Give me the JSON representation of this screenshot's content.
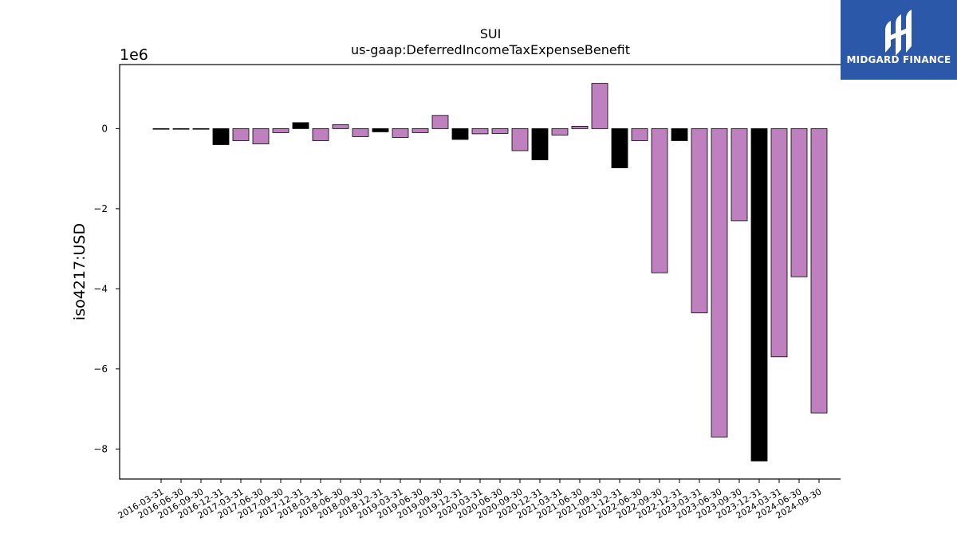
{
  "logo": {
    "text": "MIDGARD FINANCE",
    "icon": "midgard-logo-icon",
    "background": "#2b58a8"
  },
  "chart_data": {
    "type": "bar",
    "title": "SUI",
    "subtitle": "us-gaap:DeferredIncomeTaxExpenseBenefit",
    "ylabel": "iso4217:USD",
    "xlabel": "",
    "y_scale_label": "1e6",
    "ylim": [
      -8.75,
      1.6
    ],
    "yticks": [
      0,
      -2,
      -4,
      -6,
      -8
    ],
    "ytick_labels": [
      "0",
      "−2",
      "−4",
      "−6",
      "−8"
    ],
    "grid": false,
    "colors": {
      "annual": "#000000",
      "quarterly": "#bf80bf"
    },
    "categories": [
      "2016-03-31",
      "2016-06-30",
      "2016-09-30",
      "2016-12-31",
      "2017-03-31",
      "2017-06-30",
      "2017-09-30",
      "2017-12-31",
      "2018-03-31",
      "2018-06-30",
      "2018-09-30",
      "2018-12-31",
      "2019-03-31",
      "2019-06-30",
      "2019-09-30",
      "2019-12-31",
      "2020-03-31",
      "2020-06-30",
      "2020-09-30",
      "2020-12-31",
      "2021-03-31",
      "2021-06-30",
      "2021-09-30",
      "2021-12-31",
      "2022-06-30",
      "2022-09-30",
      "2022-12-31",
      "2023-03-31",
      "2023-06-30",
      "2023-09-30",
      "2023-12-31",
      "2024-03-31",
      "2024-06-30",
      "2024-09-30"
    ],
    "values": [
      -0.01,
      -0.01,
      -0.01,
      -0.4,
      -0.3,
      -0.38,
      -0.1,
      0.15,
      -0.3,
      0.1,
      -0.2,
      -0.08,
      -0.22,
      -0.1,
      0.33,
      -0.27,
      -0.13,
      -0.12,
      -0.55,
      -0.78,
      -0.16,
      0.06,
      1.13,
      -0.98,
      -0.3,
      -3.6,
      -0.3,
      -4.6,
      -7.7,
      -2.3,
      -8.3,
      -5.7,
      -3.7,
      -7.1
    ],
    "bar_colors": [
      "#000000",
      "#000000",
      "#000000",
      "#000000",
      "#bf80bf",
      "#bf80bf",
      "#bf80bf",
      "#000000",
      "#bf80bf",
      "#bf80bf",
      "#bf80bf",
      "#000000",
      "#bf80bf",
      "#bf80bf",
      "#bf80bf",
      "#000000",
      "#bf80bf",
      "#bf80bf",
      "#bf80bf",
      "#000000",
      "#bf80bf",
      "#bf80bf",
      "#bf80bf",
      "#000000",
      "#bf80bf",
      "#bf80bf",
      "#000000",
      "#bf80bf",
      "#bf80bf",
      "#bf80bf",
      "#000000",
      "#bf80bf",
      "#bf80bf",
      "#bf80bf"
    ]
  }
}
